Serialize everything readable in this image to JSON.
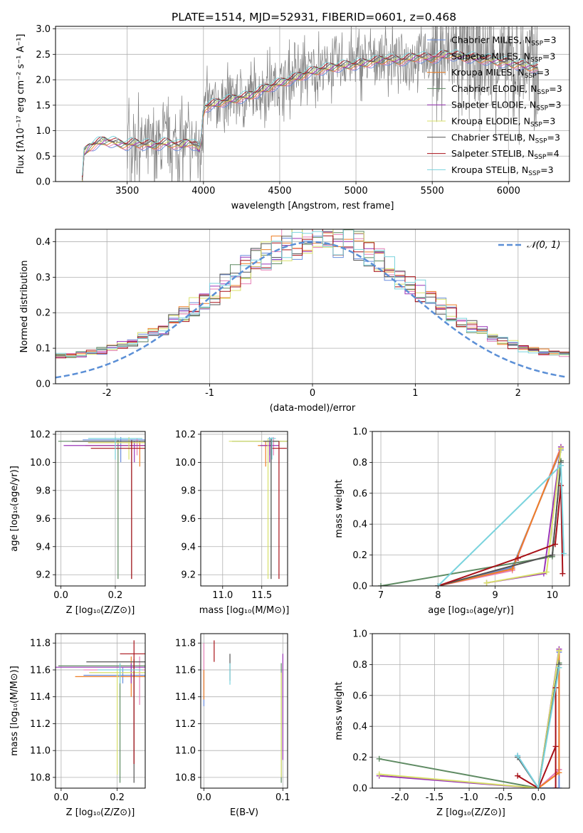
{
  "figure": {
    "title": "PLATE=1514, MJD=52931, FIBERID=0601, z=0.468"
  },
  "models": [
    {
      "name": "Chabrier MILES",
      "n": "3",
      "color": "#6a8ede"
    },
    {
      "name": "Salpeter MILES",
      "n": "3",
      "color": "#e67fb6"
    },
    {
      "name": "Kroupa MILES",
      "n": "3",
      "color": "#ee7f26"
    },
    {
      "name": "Chabrier ELODIE",
      "n": "3",
      "color": "#5e8a62"
    },
    {
      "name": "Salpeter ELODIE",
      "n": "3",
      "color": "#9a35b8"
    },
    {
      "name": "Kroupa ELODIE",
      "n": "3",
      "color": "#d8e06a"
    },
    {
      "name": "Chabrier STELIB",
      "n": "3",
      "color": "#555555"
    },
    {
      "name": "Salpeter STELIB",
      "n": "4",
      "color": "#a81118"
    },
    {
      "name": "Kroupa STELIB",
      "n": "3",
      "color": "#7ad3dd"
    }
  ],
  "chart_data": [
    {
      "id": "spectrum",
      "type": "line",
      "xlabel": "wavelength [Angstrom, rest frame]",
      "ylabel": "Flux [fλ10⁻¹⁷ erg cm⁻² s⁻¹ A⁻¹]",
      "xlim": [
        3030,
        6400
      ],
      "ylim": [
        0,
        3.05
      ],
      "xticks": [
        3500,
        4000,
        4500,
        5000,
        5500,
        6000
      ],
      "yticks": [
        0.0,
        0.5,
        1.0,
        1.5,
        2.0,
        2.5,
        3.0
      ],
      "data_color": "#808080",
      "data_points": [
        [
          3205,
          0
        ],
        [
          3215,
          0.6
        ],
        [
          3250,
          0.72
        ],
        [
          3300,
          0.78
        ],
        [
          3350,
          0.82
        ],
        [
          3400,
          0.8
        ],
        [
          3450,
          0.76
        ],
        [
          3500,
          0.72
        ],
        [
          3550,
          0.8
        ],
        [
          3600,
          0.75
        ],
        [
          3650,
          0.72
        ],
        [
          3700,
          0.7
        ],
        [
          3750,
          0.78
        ],
        [
          3800,
          0.75
        ],
        [
          3850,
          0.68
        ],
        [
          3900,
          0.85
        ],
        [
          3950,
          0.72
        ],
        [
          3980,
          0.55
        ],
        [
          4000,
          1.45
        ],
        [
          4050,
          1.5
        ],
        [
          4100,
          1.55
        ],
        [
          4200,
          1.65
        ],
        [
          4300,
          1.7
        ],
        [
          4400,
          1.85
        ],
        [
          4500,
          1.95
        ],
        [
          4600,
          2.05
        ],
        [
          4700,
          2.2
        ],
        [
          4800,
          2.25
        ],
        [
          4900,
          2.3
        ],
        [
          5000,
          2.35
        ],
        [
          5100,
          2.4
        ],
        [
          5200,
          2.45
        ],
        [
          5300,
          2.4
        ],
        [
          5400,
          2.5
        ],
        [
          5500,
          2.45
        ],
        [
          5600,
          2.55
        ],
        [
          5700,
          2.5
        ],
        [
          5800,
          2.45
        ],
        [
          5900,
          2.4
        ],
        [
          6000,
          2.35
        ],
        [
          6100,
          2.3
        ],
        [
          6200,
          2.25
        ]
      ],
      "model_points": [
        [
          3205,
          0
        ],
        [
          3215,
          0.55
        ],
        [
          3250,
          0.68
        ],
        [
          3300,
          0.75
        ],
        [
          3350,
          0.8
        ],
        [
          3400,
          0.78
        ],
        [
          3450,
          0.74
        ],
        [
          3500,
          0.72
        ],
        [
          3550,
          0.76
        ],
        [
          3600,
          0.73
        ],
        [
          3650,
          0.72
        ],
        [
          3700,
          0.72
        ],
        [
          3750,
          0.76
        ],
        [
          3800,
          0.74
        ],
        [
          3850,
          0.7
        ],
        [
          3900,
          0.78
        ],
        [
          3950,
          0.7
        ],
        [
          3980,
          0.6
        ],
        [
          4000,
          1.45
        ],
        [
          4050,
          1.5
        ],
        [
          4100,
          1.55
        ],
        [
          4200,
          1.62
        ],
        [
          4300,
          1.68
        ],
        [
          4400,
          1.82
        ],
        [
          4500,
          1.93
        ],
        [
          4600,
          2.03
        ],
        [
          4700,
          2.15
        ],
        [
          4800,
          2.22
        ],
        [
          4900,
          2.27
        ],
        [
          5000,
          2.3
        ],
        [
          5100,
          2.35
        ],
        [
          5200,
          2.4
        ],
        [
          5300,
          2.38
        ],
        [
          5400,
          2.45
        ],
        [
          5500,
          2.42
        ],
        [
          5600,
          2.5
        ],
        [
          5700,
          2.45
        ],
        [
          5800,
          2.42
        ],
        [
          5900,
          2.38
        ],
        [
          6000,
          2.33
        ],
        [
          6100,
          2.28
        ],
        [
          6200,
          2.22
        ]
      ]
    },
    {
      "id": "residuals",
      "type": "line",
      "xlabel": "(data-model)/error",
      "ylabel": "Normed distribution",
      "xlim": [
        -2.5,
        2.5
      ],
      "ylim": [
        0,
        0.435
      ],
      "xticks": [
        -2,
        -1,
        0,
        1,
        2
      ],
      "yticks": [
        0.0,
        0.1,
        0.2,
        0.3,
        0.4
      ],
      "gaussian_label": "𝒩(0, 1)",
      "gaussian_color": "#5b8fd6"
    },
    {
      "id": "age_vs_Z",
      "type": "scatter",
      "xlabel": "Z [log₁₀(Z/Z⊙)]",
      "ylabel": "age  [log₁₀(age/yr)]",
      "xlim": [
        -0.02,
        0.31
      ],
      "ylim": [
        9.12,
        10.22
      ],
      "xticks": [
        0.0,
        0.2
      ],
      "yticks": [
        9.2,
        9.4,
        9.6,
        9.8,
        10.0,
        10.2
      ],
      "values": [
        {
          "model": 0,
          "x": 0.22,
          "xerr": 0.14,
          "y": 10.16,
          "ylo": 10.0,
          "yhi": 10.18
        },
        {
          "model": 1,
          "x": 0.28,
          "xerr": 0.18,
          "y": 10.14,
          "ylo": 10.05,
          "yhi": 10.17
        },
        {
          "model": 2,
          "x": 0.29,
          "xerr": 0.2,
          "y": 10.12,
          "ylo": 9.97,
          "yhi": 10.15
        },
        {
          "model": 3,
          "x": 0.21,
          "xerr": 0.22,
          "y": 10.15,
          "ylo": 9.17,
          "yhi": 10.16
        },
        {
          "model": 4,
          "x": 0.27,
          "xerr": 0.26,
          "y": 10.12,
          "ylo": 10.0,
          "yhi": 10.15
        },
        {
          "model": 5,
          "x": 0.25,
          "xerr": 0.15,
          "y": 10.14,
          "ylo": 10.02,
          "yhi": 10.18
        },
        {
          "model": 6,
          "x": 0.26,
          "xerr": 0.22,
          "y": 10.15,
          "ylo": 9.17,
          "yhi": 10.16
        },
        {
          "model": 7,
          "x": 0.26,
          "xerr": 0.15,
          "y": 10.1,
          "ylo": 9.17,
          "yhi": 10.15
        },
        {
          "model": 8,
          "x": 0.2,
          "xerr": 0.1,
          "y": 10.17,
          "ylo": 10.02,
          "yhi": 10.18
        }
      ]
    },
    {
      "id": "age_vs_mass",
      "type": "scatter",
      "xlabel": "mass [log₁₀(M/M⊙)]",
      "xlim": [
        10.72,
        11.83
      ],
      "ylim": [
        9.12,
        10.22
      ],
      "xticks": [
        11.0,
        11.5
      ],
      "yticks": [
        9.2,
        9.4,
        9.6,
        9.8,
        10.0,
        10.2
      ],
      "values": [
        {
          "model": 0,
          "x": 11.6,
          "xerr": 0.08,
          "y": 10.15,
          "ylo": 10.05,
          "yhi": 10.18
        },
        {
          "model": 1,
          "x": 11.65,
          "xerr": 0.1,
          "y": 10.15,
          "ylo": 10.05,
          "yhi": 10.18
        },
        {
          "model": 2,
          "x": 11.55,
          "xerr": 0.1,
          "y": 10.12,
          "ylo": 9.97,
          "yhi": 10.15
        },
        {
          "model": 3,
          "x": 11.62,
          "xerr": 0.5,
          "y": 10.15,
          "ylo": 9.17,
          "yhi": 10.17
        },
        {
          "model": 4,
          "x": 11.6,
          "xerr": 0.12,
          "y": 10.12,
          "ylo": 10.0,
          "yhi": 10.15
        },
        {
          "model": 5,
          "x": 11.58,
          "xerr": 0.5,
          "y": 10.15,
          "ylo": 9.17,
          "yhi": 10.17
        },
        {
          "model": 6,
          "x": 11.62,
          "xerr": 0.1,
          "y": 10.15,
          "ylo": 9.17,
          "yhi": 10.17
        },
        {
          "model": 7,
          "x": 11.72,
          "xerr": 0.1,
          "y": 10.1,
          "ylo": 9.17,
          "yhi": 10.15
        },
        {
          "model": 8,
          "x": 11.63,
          "xerr": 0.05,
          "y": 10.17,
          "ylo": 10.02,
          "yhi": 10.18
        }
      ]
    },
    {
      "id": "weight_vs_age",
      "type": "line",
      "xlabel": "age  [log₁₀(age/yr)]",
      "ylabel": "mass weight",
      "xlim": [
        6.85,
        10.3
      ],
      "ylim": [
        0,
        1.0
      ],
      "xticks": [
        7,
        8,
        9,
        10
      ],
      "yticks": [
        0.0,
        0.2,
        0.4,
        0.6,
        0.8,
        1.0
      ],
      "series": [
        {
          "model": 0,
          "x": [
            8.0,
            9.3,
            10.15
          ],
          "y": [
            0.0,
            0.12,
            0.88
          ]
        },
        {
          "model": 1,
          "x": [
            8.0,
            9.3,
            10.15
          ],
          "y": [
            0.0,
            0.1,
            0.9
          ]
        },
        {
          "model": 2,
          "x": [
            8.0,
            9.3,
            10.15
          ],
          "y": [
            0.0,
            0.11,
            0.89
          ]
        },
        {
          "model": 3,
          "x": [
            7.0,
            10.0,
            10.15
          ],
          "y": [
            0.0,
            0.19,
            0.81
          ]
        },
        {
          "model": 4,
          "x": [
            8.85,
            9.85,
            10.15
          ],
          "y": [
            0.02,
            0.08,
            0.9
          ]
        },
        {
          "model": 5,
          "x": [
            8.85,
            9.9,
            10.15
          ],
          "y": [
            0.02,
            0.09,
            0.89
          ]
        },
        {
          "model": 6,
          "x": [
            8.0,
            10.0,
            10.15
          ],
          "y": [
            0.0,
            0.2,
            0.8
          ]
        },
        {
          "model": 7,
          "x": [
            8.0,
            9.4,
            10.05,
            10.15,
            10.18
          ],
          "y": [
            0.0,
            0.18,
            0.27,
            0.65,
            0.08
          ]
        },
        {
          "model": 8,
          "x": [
            8.0,
            10.15,
            10.2
          ],
          "y": [
            0.0,
            0.78,
            0.21
          ]
        }
      ]
    },
    {
      "id": "mass_vs_Z",
      "type": "scatter",
      "xlabel": "Z [log₁₀(Z/Z⊙)]",
      "ylabel": "mass [log₁₀(M/M⊙)]",
      "xlim": [
        -0.02,
        0.3
      ],
      "ylim": [
        10.72,
        11.87
      ],
      "xticks": [
        0.0,
        0.2
      ],
      "yticks": [
        10.8,
        11.0,
        11.2,
        11.4,
        11.6,
        11.8
      ],
      "values": [
        {
          "model": 0,
          "x": 0.22,
          "xerr": 0.14,
          "y": 11.56,
          "ylo": 11.5,
          "yhi": 11.62
        },
        {
          "model": 1,
          "x": 0.28,
          "xerr": 0.2,
          "y": 11.6,
          "ylo": 11.34,
          "yhi": 11.7
        },
        {
          "model": 2,
          "x": 0.25,
          "xerr": 0.2,
          "y": 11.55,
          "ylo": 11.4,
          "yhi": 11.7
        },
        {
          "model": 3,
          "x": 0.21,
          "xerr": 0.22,
          "y": 11.63,
          "ylo": 10.76,
          "yhi": 11.65
        },
        {
          "model": 4,
          "x": 0.25,
          "xerr": 0.27,
          "y": 11.62,
          "ylo": 11.5,
          "yhi": 11.65
        },
        {
          "model": 5,
          "x": 0.2,
          "xerr": 0.1,
          "y": 11.58,
          "ylo": 10.82,
          "yhi": 11.6
        },
        {
          "model": 6,
          "x": 0.26,
          "xerr": 0.17,
          "y": 11.66,
          "ylo": 10.76,
          "yhi": 11.68
        },
        {
          "model": 7,
          "x": 0.26,
          "xerr": 0.05,
          "y": 11.72,
          "ylo": 10.9,
          "yhi": 11.82
        },
        {
          "model": 8,
          "x": 0.21,
          "xerr": 0.08,
          "y": 11.6,
          "ylo": 11.5,
          "yhi": 11.65
        }
      ]
    },
    {
      "id": "mass_vs_ebv",
      "type": "scatter",
      "xlabel": "E(B-V)",
      "xlim": [
        -0.004,
        0.106
      ],
      "ylim": [
        10.72,
        11.87
      ],
      "xticks": [
        0.0,
        0.1
      ],
      "yticks": [
        10.8,
        11.0,
        11.2,
        11.4,
        11.6,
        11.8
      ],
      "values": [
        {
          "model": 0,
          "x": 0.0,
          "y": 11.36,
          "ylo": 11.33,
          "yhi": 11.6
        },
        {
          "model": 1,
          "x": 0.0,
          "y": 11.6,
          "ylo": 11.45,
          "yhi": 11.8
        },
        {
          "model": 2,
          "x": 0.0,
          "y": 11.5,
          "ylo": 11.38,
          "yhi": 11.6
        },
        {
          "model": 3,
          "x": 0.098,
          "y": 11.2,
          "ylo": 10.76,
          "yhi": 11.65
        },
        {
          "model": 4,
          "x": 0.1,
          "y": 11.3,
          "ylo": 10.93,
          "yhi": 11.72
        },
        {
          "model": 5,
          "x": 0.098,
          "y": 11.0,
          "ylo": 10.8,
          "yhi": 11.58
        },
        {
          "model": 6,
          "x": 0.033,
          "y": 11.6,
          "ylo": 11.52,
          "yhi": 11.72
        },
        {
          "model": 7,
          "x": 0.013,
          "y": 11.72,
          "ylo": 11.66,
          "yhi": 11.82
        },
        {
          "model": 8,
          "x": 0.033,
          "y": 11.58,
          "ylo": 11.49,
          "yhi": 11.65
        }
      ]
    },
    {
      "id": "weight_vs_Z",
      "type": "line",
      "xlabel": "Z [log₁₀(Z/Z⊙)]",
      "ylabel": "mass weight",
      "xlim": [
        -2.4,
        0.45
      ],
      "ylim": [
        0,
        1.0
      ],
      "xticks": [
        -2.0,
        -1.5,
        -1.0,
        -0.5,
        0.0
      ],
      "yticks": [
        0.0,
        0.2,
        0.4,
        0.6,
        0.8,
        1.0
      ],
      "series": [
        {
          "model": 0,
          "x": [
            -0.3,
            0.0,
            0.3,
            0.3
          ],
          "y": [
            0.21,
            0.0,
            0.0,
            0.88
          ]
        },
        {
          "model": 1,
          "x": [
            0.0,
            0.3,
            0.3,
            0.3
          ],
          "y": [
            0.0,
            0.12,
            0.12,
            0.9
          ]
        },
        {
          "model": 2,
          "x": [
            0.0,
            0.3,
            0.3
          ],
          "y": [
            0.0,
            0.1,
            0.89
          ]
        },
        {
          "model": 3,
          "x": [
            -2.3,
            0.0,
            0.3
          ],
          "y": [
            0.19,
            0.0,
            0.81
          ]
        },
        {
          "model": 4,
          "x": [
            -2.3,
            0.0,
            0.3
          ],
          "y": [
            0.08,
            0.0,
            0.9
          ]
        },
        {
          "model": 5,
          "x": [
            -2.3,
            0.0,
            0.3
          ],
          "y": [
            0.09,
            0.0,
            0.89
          ]
        },
        {
          "model": 6,
          "x": [
            -0.3,
            0.0,
            0.3
          ],
          "y": [
            0.2,
            0.0,
            0.8
          ]
        },
        {
          "model": 7,
          "x": [
            -0.3,
            0.0,
            0.25,
            0.25,
            0.25
          ],
          "y": [
            0.08,
            0.0,
            0.27,
            0.65,
            0.0
          ]
        },
        {
          "model": 8,
          "x": [
            -0.3,
            0.0,
            0.3
          ],
          "y": [
            0.21,
            0.0,
            0.78
          ]
        }
      ]
    }
  ]
}
